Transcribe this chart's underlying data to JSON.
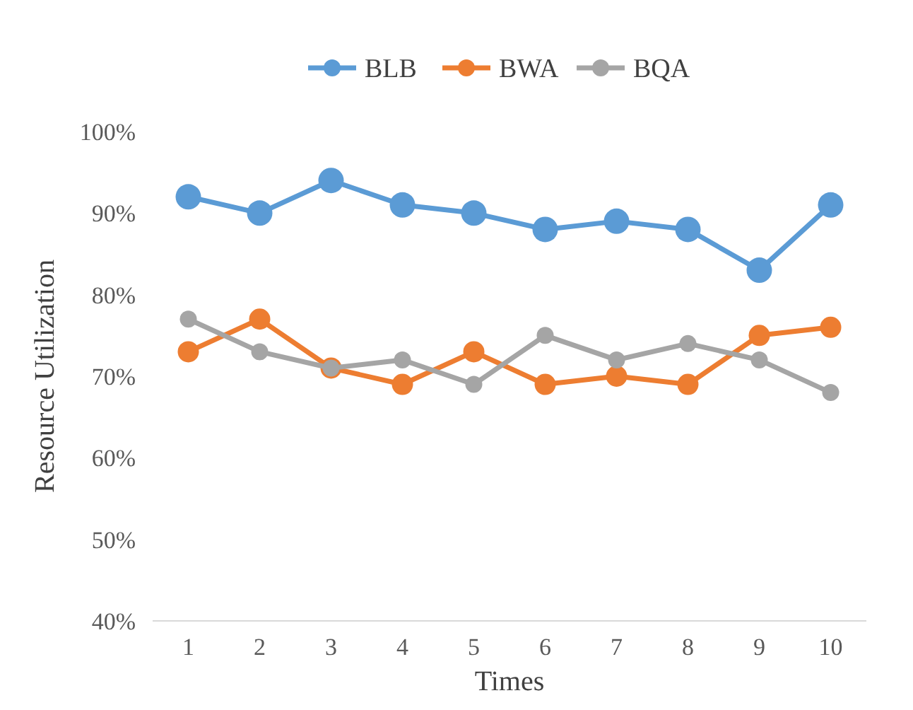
{
  "chart_data": {
    "type": "line",
    "xlabel": "Times",
    "ylabel": "Resource Utilization",
    "categories": [
      "1",
      "2",
      "3",
      "4",
      "5",
      "6",
      "7",
      "8",
      "9",
      "10"
    ],
    "series": [
      {
        "name": "BLB",
        "color": "#5b9bd5",
        "values": [
          92,
          90,
          94,
          91,
          90,
          88,
          89,
          88,
          83,
          91
        ]
      },
      {
        "name": "BWA",
        "color": "#ed7d31",
        "values": [
          73,
          77,
          71,
          69,
          73,
          69,
          70,
          69,
          75,
          76
        ]
      },
      {
        "name": "BQA",
        "color": "#a5a5a5",
        "values": [
          77,
          73,
          71,
          72,
          69,
          75,
          72,
          74,
          72,
          68
        ]
      }
    ],
    "ylim": [
      40,
      100
    ],
    "yticks": [
      {
        "value": 40,
        "label": "40%"
      },
      {
        "value": 50,
        "label": "50%"
      },
      {
        "value": 60,
        "label": "60%"
      },
      {
        "value": 70,
        "label": "70%"
      },
      {
        "value": 80,
        "label": "80%"
      },
      {
        "value": 90,
        "label": "90%"
      },
      {
        "value": 100,
        "label": "100%"
      }
    ],
    "grid": false,
    "legend": "top",
    "marker": "circle",
    "line_style": "solid"
  }
}
